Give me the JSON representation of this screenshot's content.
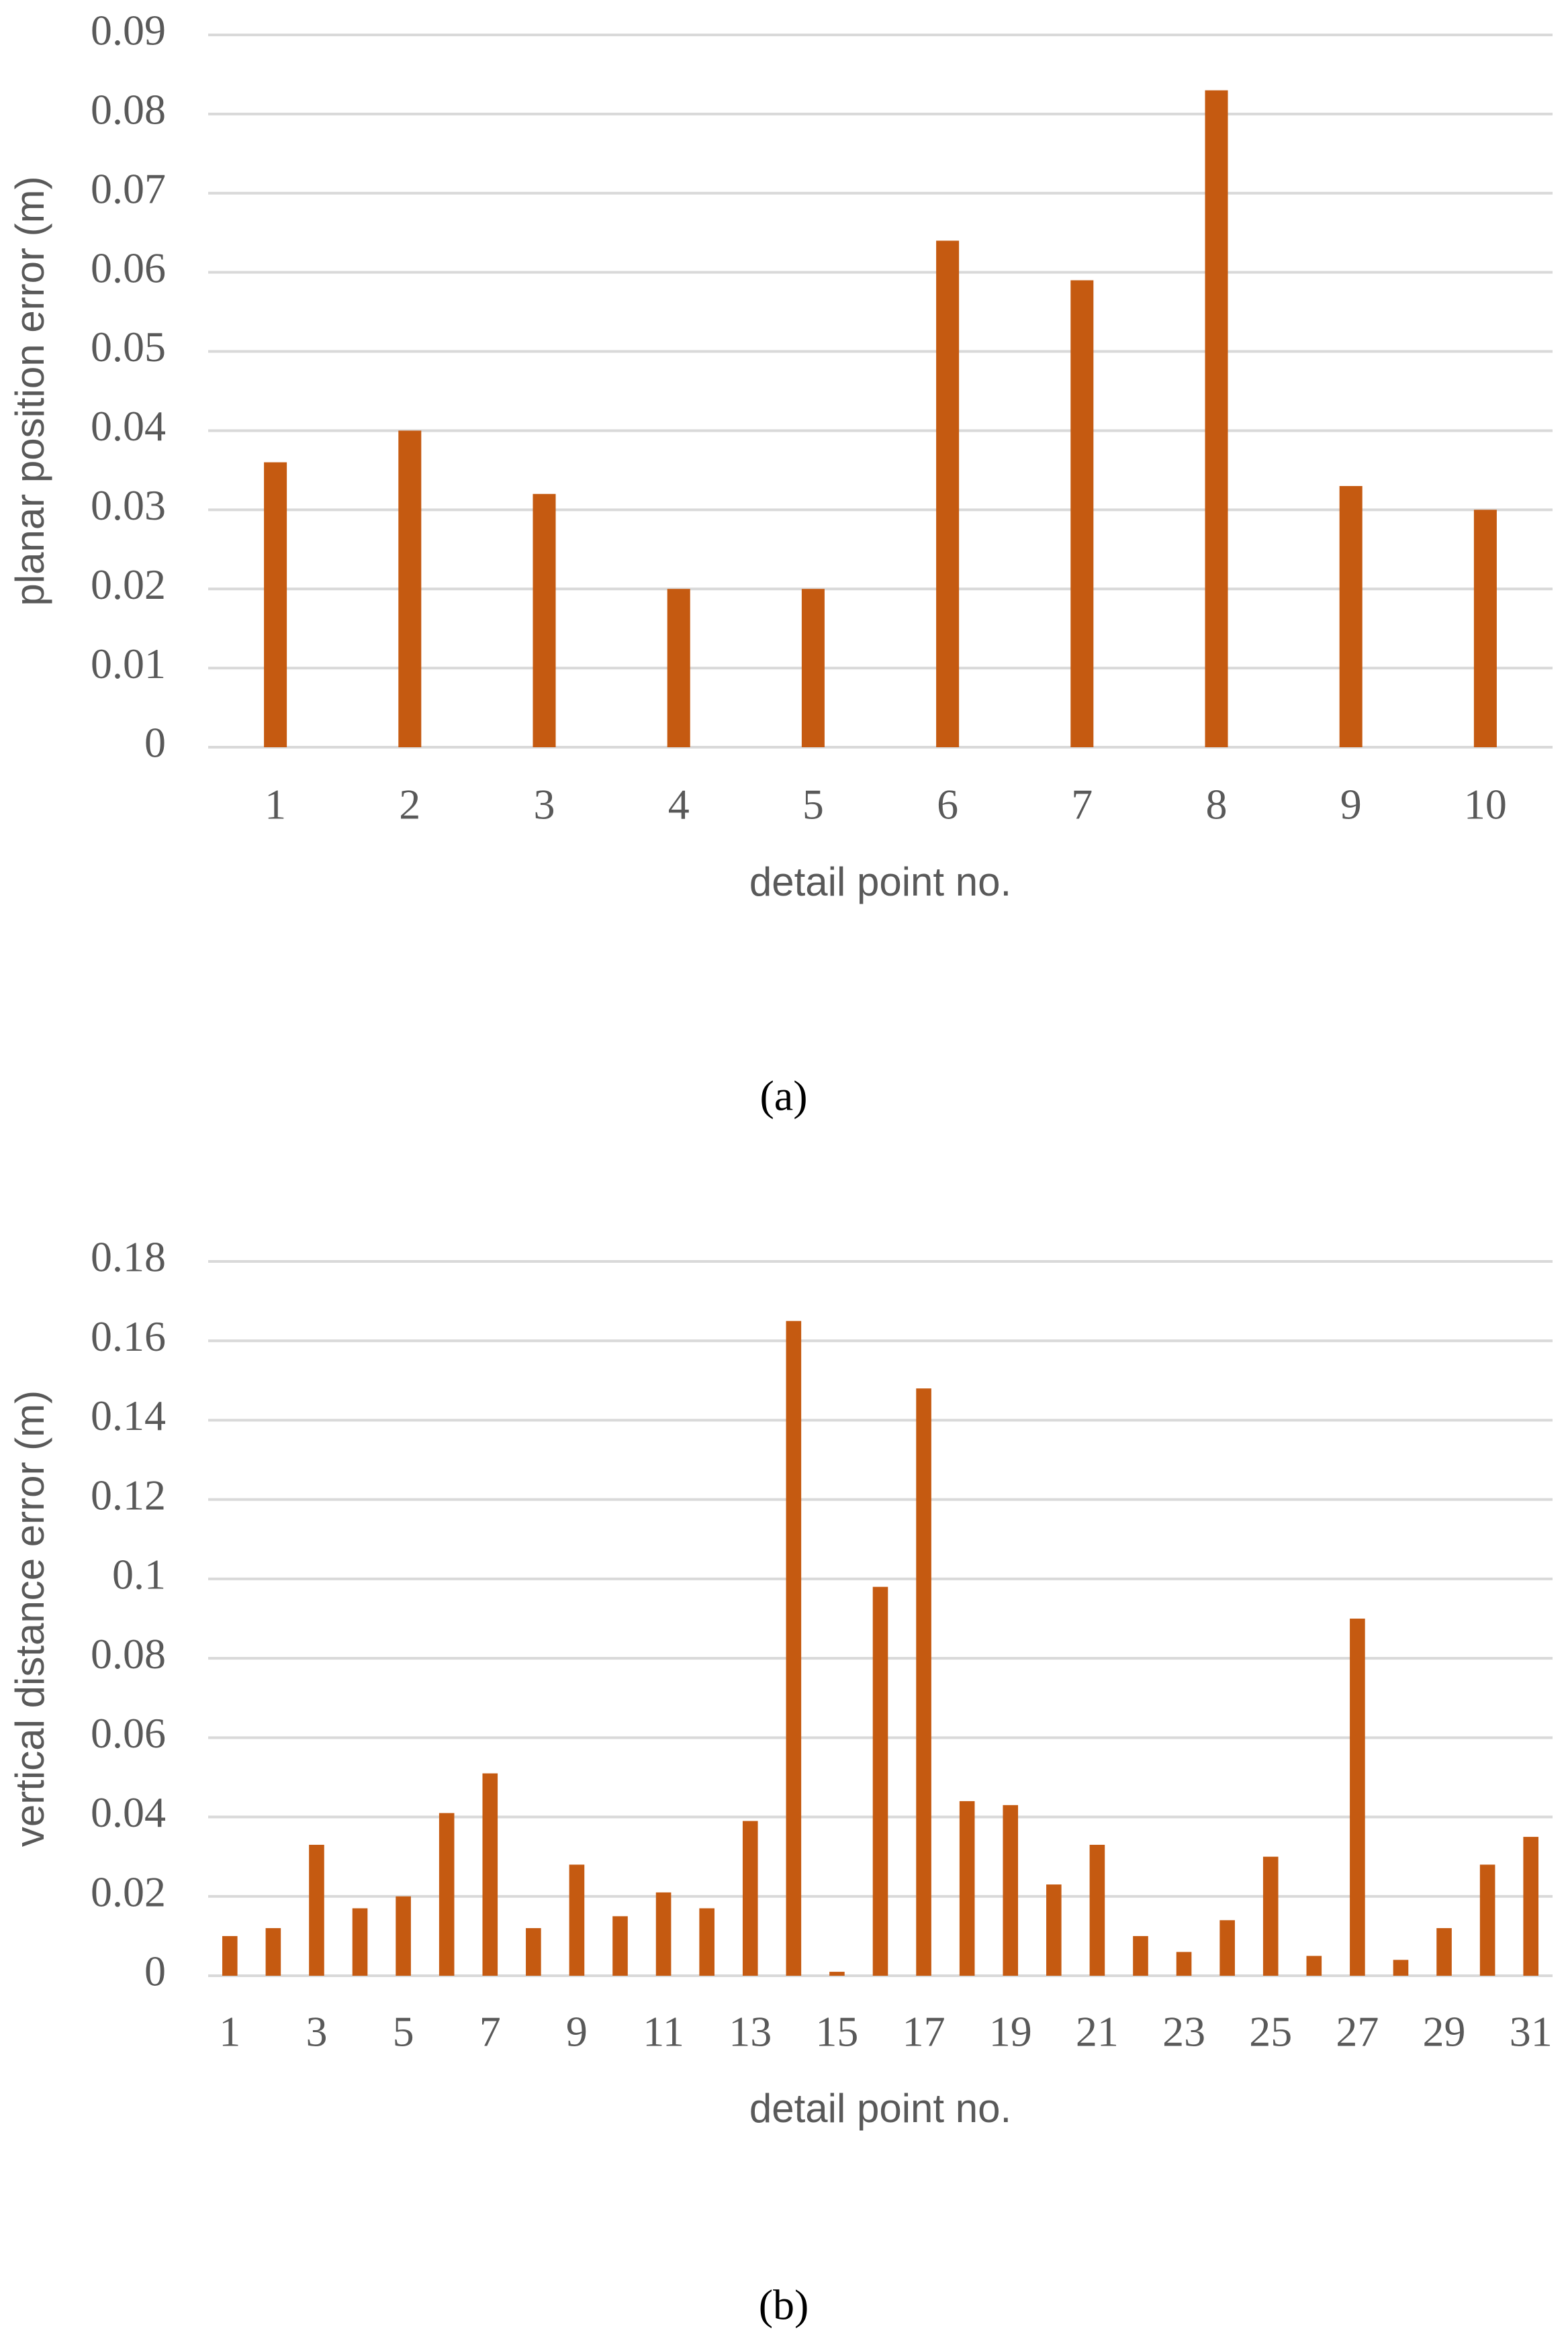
{
  "chart_data": [
    {
      "type": "bar",
      "caption": "(a)",
      "x_label": "detail point no.",
      "y_label": "planar position error (m)",
      "categories": [
        "1",
        "2",
        "3",
        "4",
        "5",
        "6",
        "7",
        "8",
        "9",
        "10"
      ],
      "values": [
        0.036,
        0.04,
        0.032,
        0.02,
        0.02,
        0.064,
        0.059,
        0.083,
        0.033,
        0.03
      ],
      "color": "#c55a11",
      "ylim": [
        0,
        0.09
      ],
      "yticks": [
        0,
        0.01,
        0.02,
        0.03,
        0.04,
        0.05,
        0.06,
        0.07,
        0.08,
        0.09
      ],
      "grid": true
    },
    {
      "type": "bar",
      "caption": "(b)",
      "x_label": "detail point no.",
      "y_label": "vertical distance error (m)",
      "categories": [
        "1",
        null,
        "3",
        null,
        "5",
        null,
        "7",
        null,
        "9",
        null,
        "11",
        null,
        "13",
        null,
        "15",
        null,
        "17",
        null,
        "19",
        null,
        "21",
        null,
        "23",
        null,
        "25",
        null,
        "27",
        null,
        "29",
        null,
        "31"
      ],
      "values": [
        0.01,
        0.012,
        0.033,
        0.017,
        0.02,
        0.041,
        0.051,
        0.012,
        0.028,
        0.015,
        0.021,
        0.017,
        0.039,
        0.165,
        0.001,
        0.098,
        0.148,
        0.044,
        0.043,
        0.023,
        0.033,
        0.01,
        0.006,
        0.014,
        0.03,
        0.005,
        0.09,
        0.004,
        0.012,
        0.028,
        0.035
      ],
      "color": "#c55a11",
      "ylim": [
        0,
        0.18
      ],
      "yticks": [
        0,
        0.02,
        0.04,
        0.06,
        0.08,
        0.1,
        0.12,
        0.14,
        0.16,
        0.18
      ],
      "grid": true
    }
  ]
}
